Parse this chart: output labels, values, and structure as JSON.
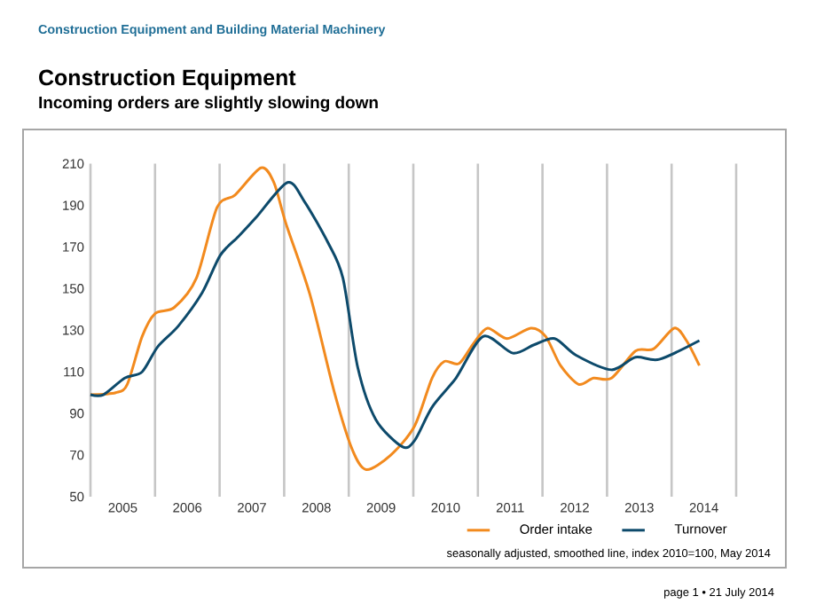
{
  "chart_data": {
    "type": "line",
    "title": "Construction Equipment",
    "subtitle": "Incoming orders are slightly slowing down",
    "annotations": [
      "Construction Equipment and Building Material Machinery",
      "seasonally adjusted, smoothed line, index 2010=100, May 2014",
      "page 1 • 21 July 2014"
    ],
    "xlim": [
      2005,
      2015
    ],
    "xticks": [
      {
        "value": 2005,
        "label": null
      },
      {
        "value": 2005.5,
        "label": "2005"
      },
      {
        "value": 2006,
        "label": null
      },
      {
        "value": 2006.5,
        "label": "2006"
      },
      {
        "value": 2007,
        "label": null
      },
      {
        "value": 2007.5,
        "label": "2007"
      },
      {
        "value": 2008,
        "label": null
      },
      {
        "value": 2008.5,
        "label": "2008"
      },
      {
        "value": 2009,
        "label": null
      },
      {
        "value": 2009.5,
        "label": "2009"
      },
      {
        "value": 2010,
        "label": null
      },
      {
        "value": 2010.5,
        "label": "2010"
      },
      {
        "value": 2011,
        "label": null
      },
      {
        "value": 2011.5,
        "label": "2011"
      },
      {
        "value": 2012,
        "label": null
      },
      {
        "value": 2012.5,
        "label": "2012"
      },
      {
        "value": 2013,
        "label": null
      },
      {
        "value": 2013.5,
        "label": "2013"
      },
      {
        "value": 2014,
        "label": null
      },
      {
        "value": 2014.5,
        "label": "2014"
      },
      {
        "value": 2015,
        "label": null
      }
    ],
    "ylim": [
      50,
      210
    ],
    "yticks": [
      50,
      70,
      90,
      110,
      130,
      150,
      170,
      190,
      210
    ],
    "grid": "x",
    "legend": "bottom right",
    "marker": "none",
    "line_style": "solid",
    "series": [
      {
        "name": "Order intake",
        "color": "#f28a1e",
        "x": [
          2005.0,
          2005.39,
          2005.57,
          2005.8,
          2006.0,
          2006.3,
          2006.64,
          2006.96,
          2007.24,
          2007.64,
          2007.84,
          2008.03,
          2008.4,
          2008.77,
          2009.05,
          2009.27,
          2009.65,
          2010.02,
          2010.29,
          2010.48,
          2010.71,
          2010.94,
          2011.15,
          2011.45,
          2011.82,
          2012.05,
          2012.28,
          2012.56,
          2012.79,
          2013.07,
          2013.44,
          2013.72,
          2014.04,
          2014.23,
          2014.43
        ],
        "values": [
          99,
          100,
          104,
          127,
          138,
          141,
          155,
          189,
          195,
          208,
          201,
          181,
          147,
          101,
          73,
          63,
          70,
          84,
          107,
          115,
          114,
          124,
          131,
          126,
          131,
          127,
          113,
          104,
          107,
          107,
          120,
          121,
          131,
          125,
          113
        ]
      },
      {
        "name": "Turnover",
        "color": "#0d4a6b",
        "x": [
          2005.0,
          2005.2,
          2005.53,
          2005.8,
          2006.04,
          2006.36,
          2006.73,
          2007.01,
          2007.29,
          2007.56,
          2008.05,
          2008.31,
          2008.68,
          2008.91,
          2009.14,
          2009.42,
          2009.83,
          2010.02,
          2010.29,
          2010.66,
          2011.08,
          2011.54,
          2011.87,
          2012.19,
          2012.52,
          2013.07,
          2013.44,
          2013.81,
          2014.43
        ],
        "values": [
          99,
          99,
          107,
          110,
          122,
          132,
          148,
          166,
          175,
          184,
          201,
          192,
          172,
          155,
          112,
          87,
          74,
          77,
          93,
          107,
          127,
          119,
          123,
          126,
          118,
          111,
          117,
          116,
          125
        ]
      }
    ]
  }
}
